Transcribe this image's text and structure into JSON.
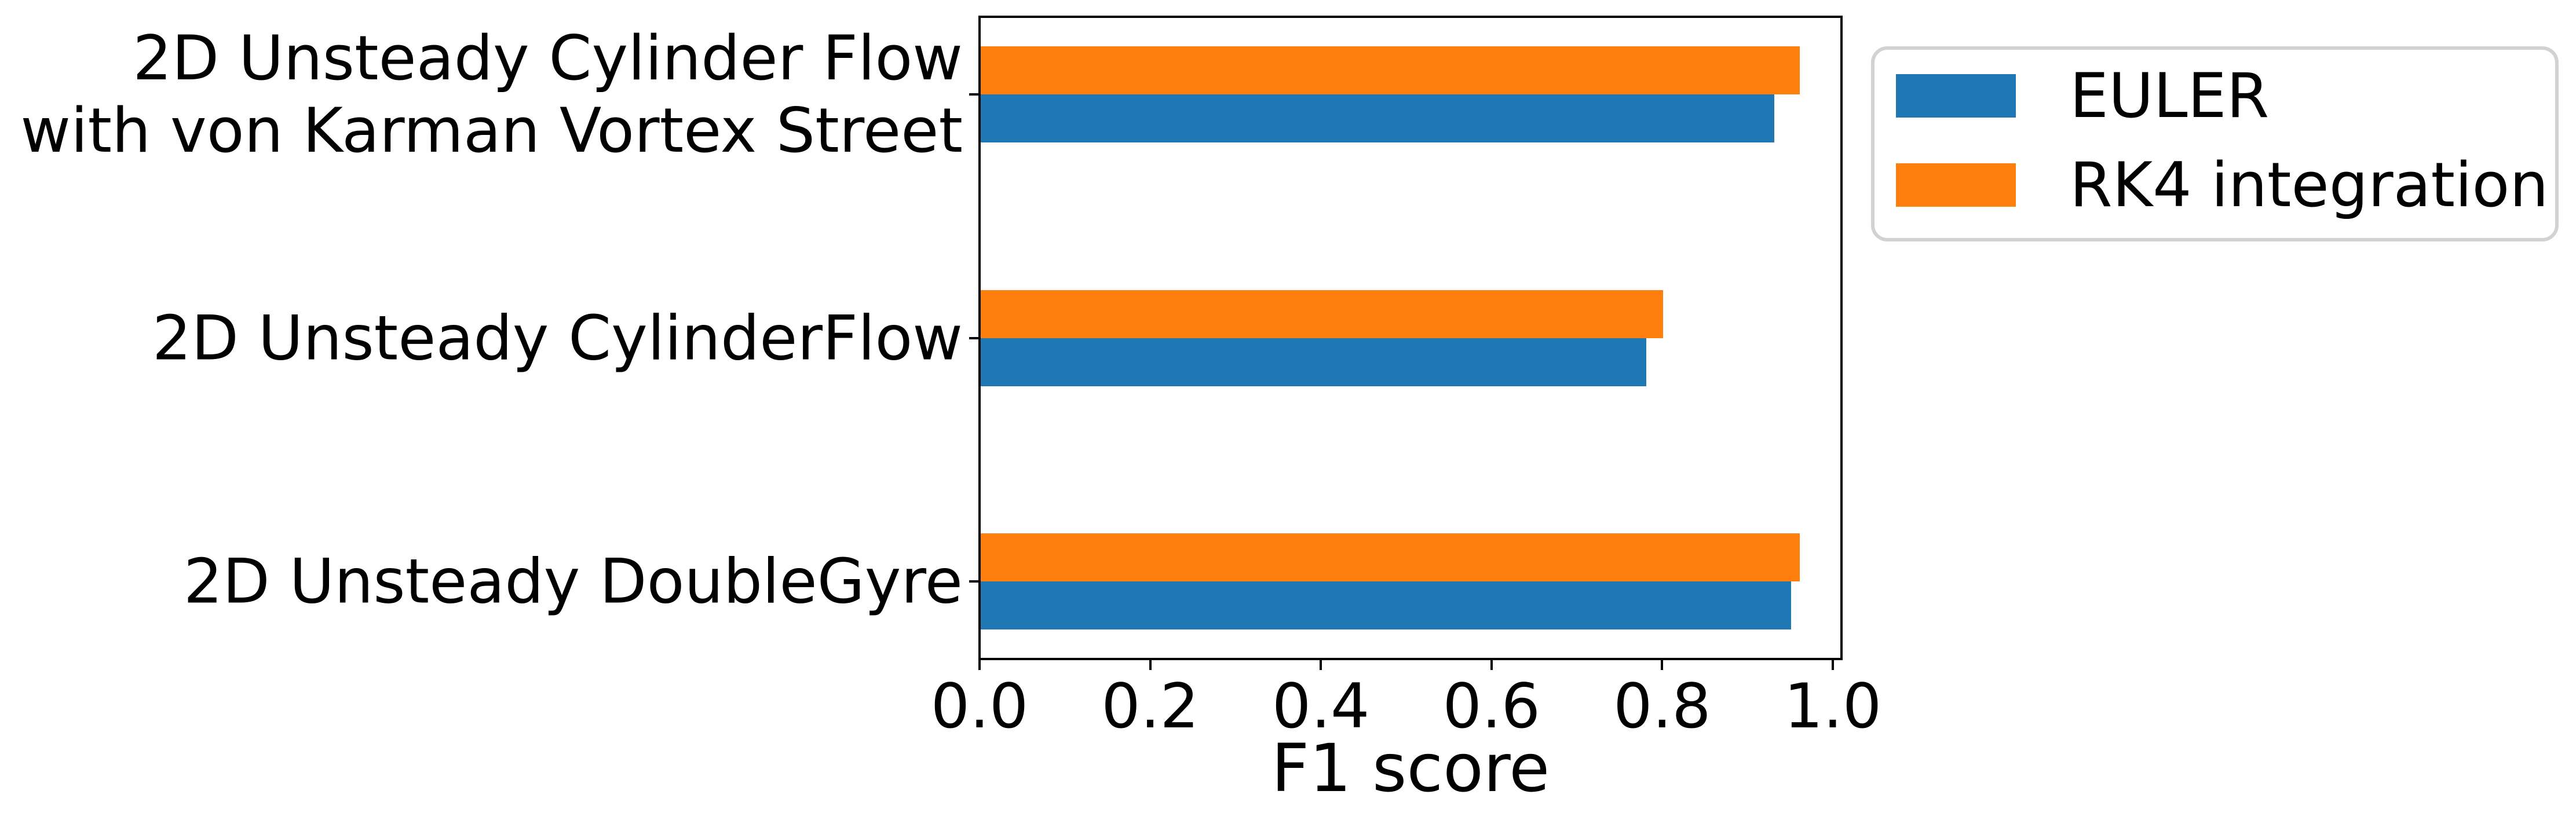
{
  "chart_data": {
    "type": "bar",
    "orientation": "horizontal",
    "title": "",
    "xlabel": "F1 score",
    "ylabel": "",
    "categories": [
      "2D Unsteady Cylinder Flow\nwith von Karman Vortex Street",
      "2D Unsteady CylinderFlow",
      "2D Unsteady DoubleGyre"
    ],
    "series": [
      {
        "name": "EULER",
        "color": "#1f77b4",
        "values": [
          0.93,
          0.78,
          0.95
        ]
      },
      {
        "name": "RK4 integration",
        "color": "#ff7f0e",
        "values": [
          0.96,
          0.8,
          0.96
        ]
      }
    ],
    "xticks": [
      "0.0",
      "0.2",
      "0.4",
      "0.6",
      "0.8",
      "1.0"
    ],
    "xlim": [
      0.0,
      1.01
    ],
    "grid": false,
    "legend_position": "upper-right-outside",
    "axis_color": "#000000",
    "legend_border_color": "#d2d2d2",
    "background_color": "#ffffff"
  }
}
